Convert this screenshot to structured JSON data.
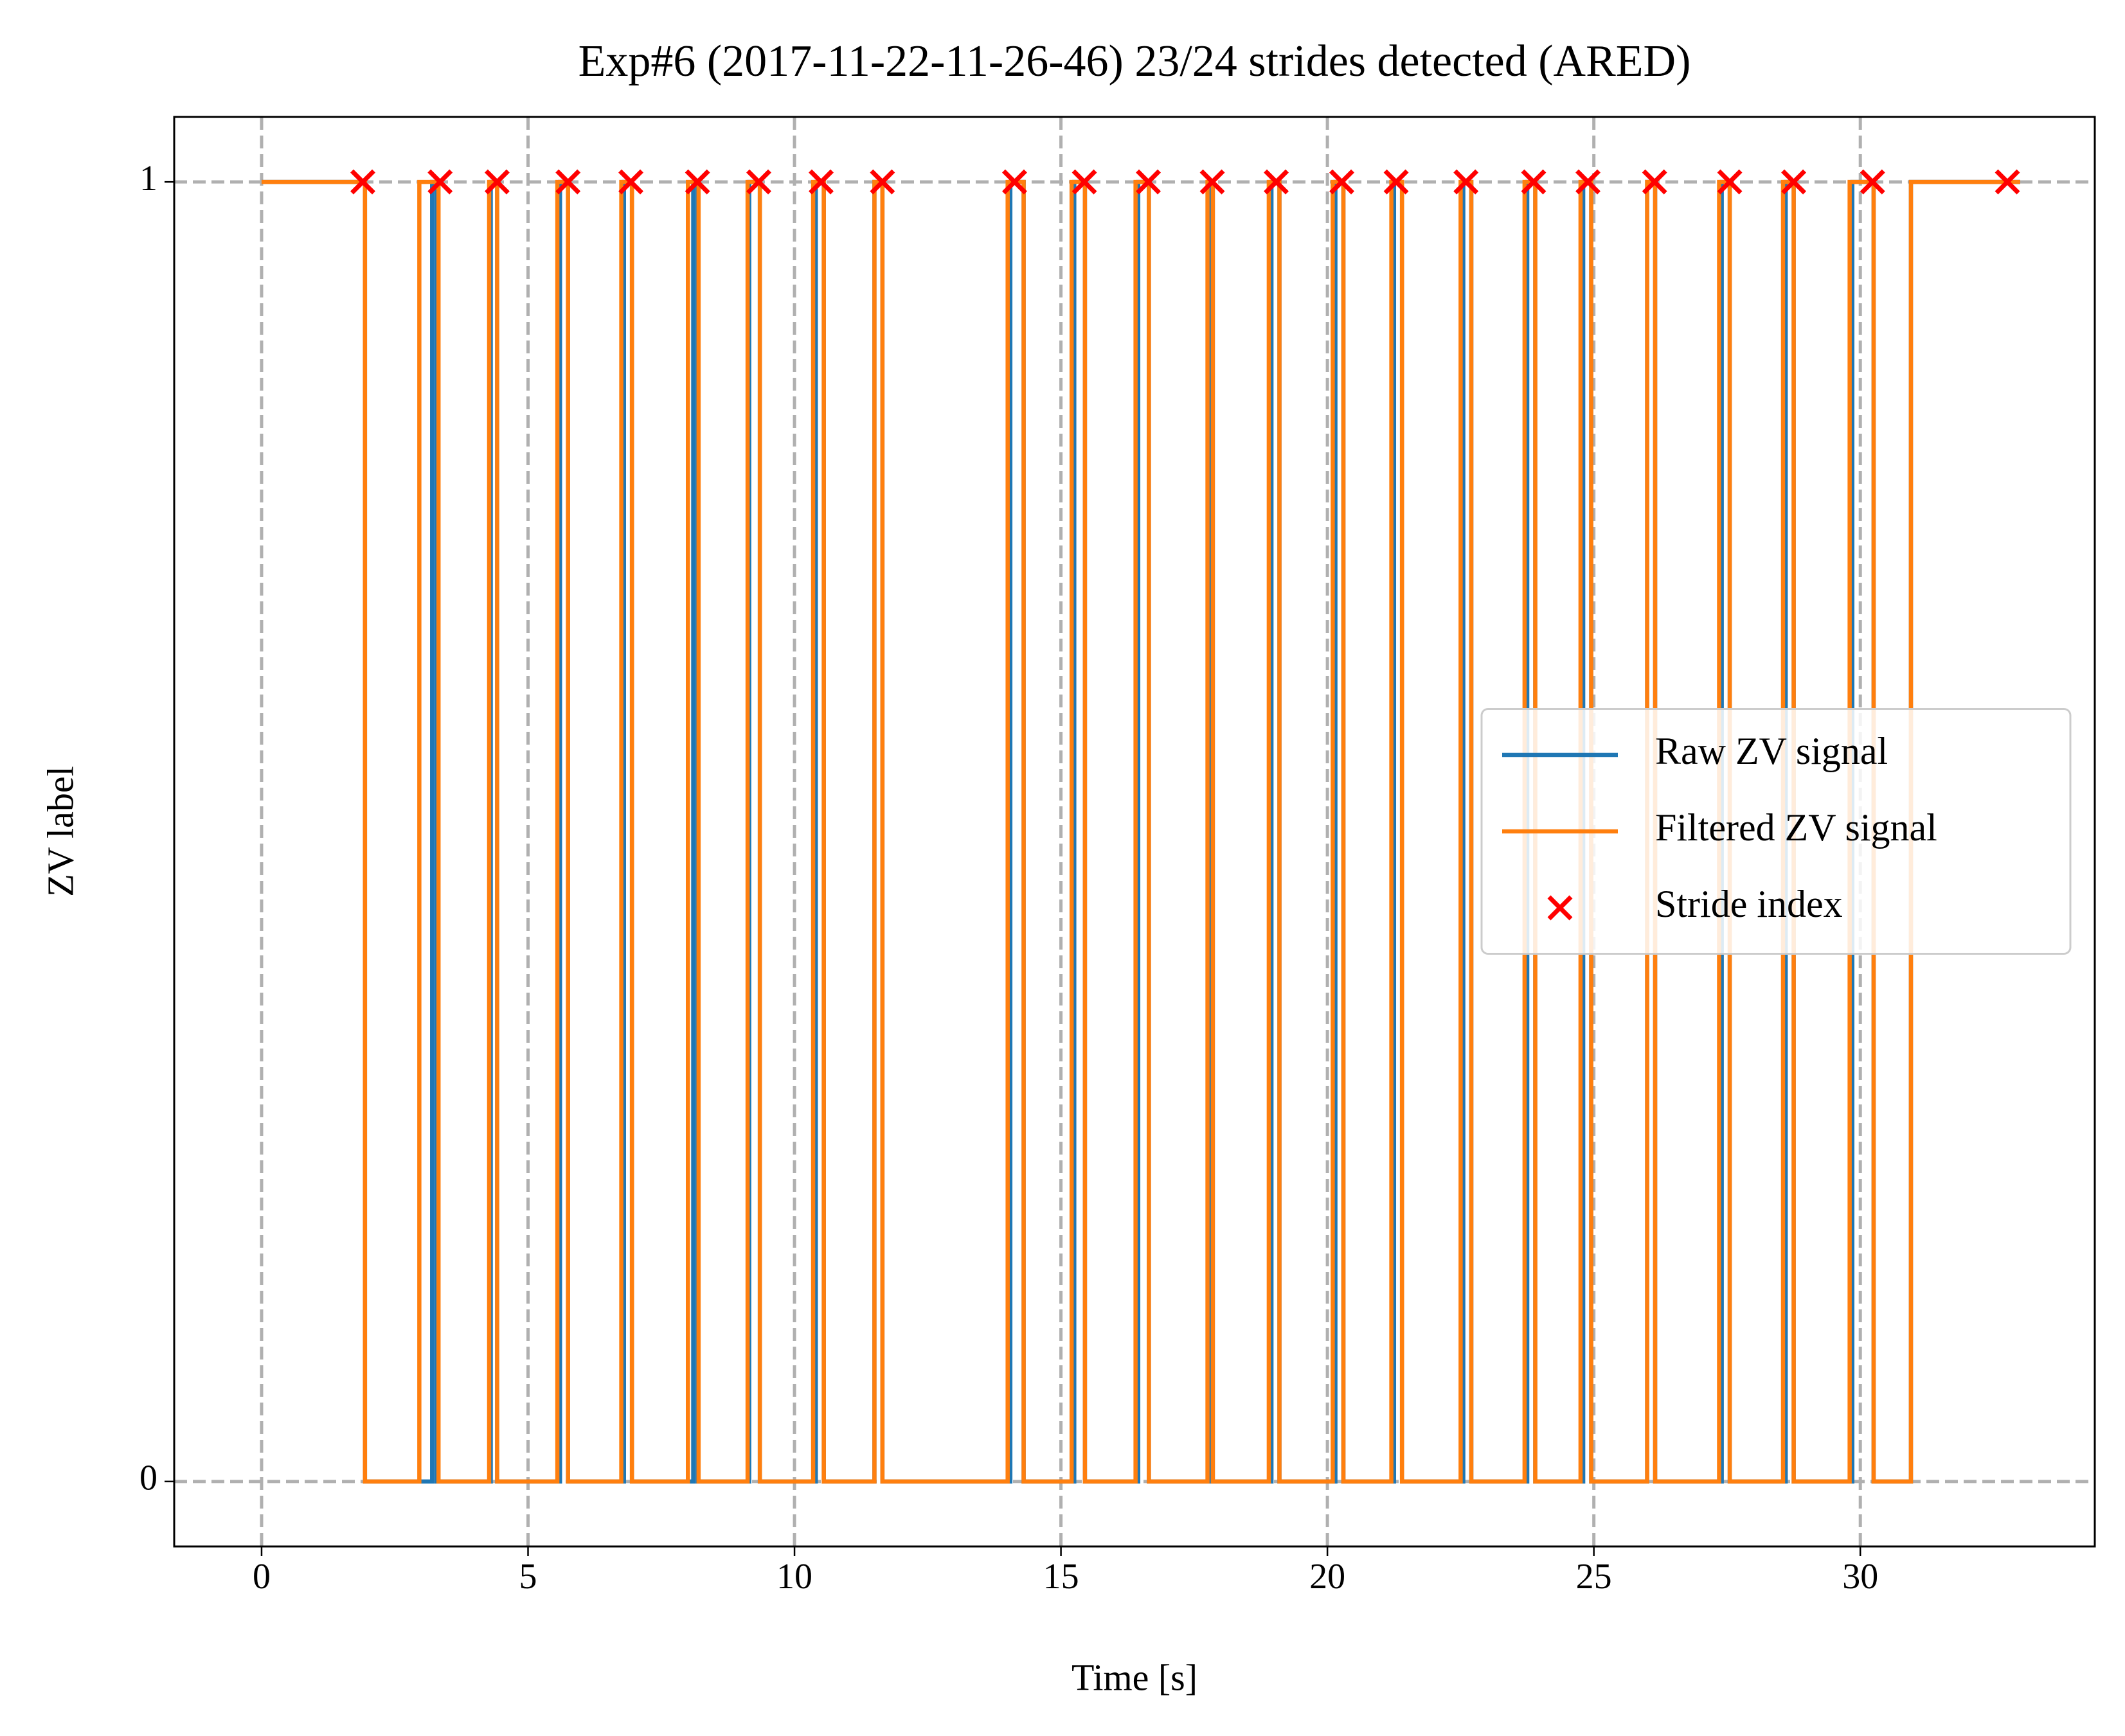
{
  "chart_data": {
    "type": "line",
    "title": "Exp#6 (2017-11-22-11-26-46) 23/24 strides detected (ARED)",
    "x_label": "Time [s]",
    "y_label": "ZV label",
    "xlim": [
      -1.64,
      34.4
    ],
    "ylim": [
      -0.05,
      1.05
    ],
    "xticks": [
      0,
      5,
      10,
      15,
      20,
      25,
      30
    ],
    "yticks": [
      0,
      1
    ],
    "grid": true,
    "legend": "center right",
    "series": [
      {
        "name": "Raw ZV signal",
        "type": "line",
        "color": "#1f77b4",
        "x": [
          0,
          1.94,
          1.94,
          3.2,
          3.2,
          3.28,
          3.28,
          4.3,
          4.3,
          4.42,
          4.42,
          5.6,
          5.6,
          5.75,
          5.75,
          6.8,
          6.8,
          6.95,
          6.95,
          8.1,
          8.1,
          8.18,
          8.18,
          9.15,
          9.15,
          9.35,
          9.35,
          10.4,
          10.4,
          10.55,
          10.55,
          11.5,
          11.5,
          11.65,
          11.65,
          14.05,
          14.05,
          14.3,
          14.3,
          15.25,
          15.25,
          15.45,
          15.45,
          16.45,
          16.45,
          16.65,
          16.65,
          17.78,
          17.78,
          17.85,
          17.85,
          18.95,
          18.95,
          19.1,
          19.1,
          20.15,
          20.15,
          20.3,
          20.3,
          21.25,
          21.25,
          21.4,
          21.4,
          22.55,
          22.55,
          22.7,
          22.7,
          23.75,
          23.75,
          23.9,
          23.9,
          24.8,
          24.8,
          24.95,
          24.95,
          26.0,
          26.0,
          26.15,
          26.15,
          27.4,
          27.4,
          27.55,
          27.55,
          28.6,
          28.6,
          28.75,
          28.75,
          29.85,
          29.85,
          30.25,
          30.25,
          30.95,
          30.95,
          33.0
        ],
        "values": [
          1,
          1,
          0,
          0,
          1,
          1,
          0,
          0,
          1,
          1,
          0,
          0,
          1,
          1,
          0,
          0,
          1,
          1,
          0,
          0,
          1,
          1,
          0,
          0,
          1,
          1,
          0,
          0,
          1,
          1,
          0,
          0,
          1,
          1,
          0,
          0,
          1,
          1,
          0,
          0,
          1,
          1,
          0,
          0,
          1,
          1,
          0,
          0,
          1,
          1,
          0,
          0,
          1,
          1,
          0,
          0,
          1,
          1,
          0,
          0,
          1,
          1,
          0,
          0,
          1,
          1,
          0,
          0,
          1,
          1,
          0,
          0,
          1,
          1,
          0,
          0,
          1,
          1,
          0,
          0,
          1,
          1,
          0,
          0,
          1,
          1,
          0,
          0,
          1,
          1,
          0,
          0,
          1,
          1
        ]
      },
      {
        "name": "Filtered ZV signal",
        "type": "line",
        "color": "#ff7f0e",
        "x": [
          0,
          1.94,
          1.94,
          2.96,
          2.96,
          3.32,
          3.32,
          4.27,
          4.27,
          4.42,
          4.42,
          5.55,
          5.55,
          5.75,
          5.75,
          6.75,
          6.75,
          6.95,
          6.95,
          8.0,
          8.0,
          8.2,
          8.2,
          9.12,
          9.12,
          9.35,
          9.35,
          10.35,
          10.35,
          10.55,
          10.55,
          11.5,
          11.5,
          11.65,
          11.65,
          14.0,
          14.0,
          14.3,
          14.3,
          15.2,
          15.2,
          15.45,
          15.45,
          16.4,
          16.4,
          16.65,
          16.65,
          17.75,
          17.75,
          17.85,
          17.85,
          18.9,
          18.9,
          19.1,
          19.1,
          20.1,
          20.1,
          20.3,
          20.3,
          21.2,
          21.2,
          21.4,
          21.4,
          22.5,
          22.5,
          22.7,
          22.7,
          23.7,
          23.7,
          23.9,
          23.9,
          24.75,
          24.75,
          24.95,
          24.95,
          26.0,
          26.0,
          26.15,
          26.15,
          27.35,
          27.35,
          27.55,
          27.55,
          28.55,
          28.55,
          28.75,
          28.75,
          29.8,
          29.8,
          30.25,
          30.25,
          30.95,
          30.95,
          33.0
        ],
        "values": [
          1,
          1,
          0,
          0,
          1,
          1,
          0,
          0,
          1,
          1,
          0,
          0,
          1,
          1,
          0,
          0,
          1,
          1,
          0,
          0,
          1,
          1,
          0,
          0,
          1,
          1,
          0,
          0,
          1,
          1,
          0,
          0,
          1,
          1,
          0,
          0,
          1,
          1,
          0,
          0,
          1,
          1,
          0,
          0,
          1,
          1,
          0,
          0,
          1,
          1,
          0,
          0,
          1,
          1,
          0,
          0,
          1,
          1,
          0,
          0,
          1,
          1,
          0,
          0,
          1,
          1,
          0,
          0,
          1,
          1,
          0,
          0,
          1,
          1,
          0,
          0,
          1,
          1,
          0,
          0,
          1,
          1,
          0,
          0,
          1,
          1,
          0,
          0,
          1,
          1,
          0,
          0,
          1,
          1
        ]
      },
      {
        "name": "Stride index",
        "type": "scatter",
        "marker": "x",
        "color": "#ff0000",
        "x": [
          1.9,
          3.35,
          4.42,
          5.75,
          6.93,
          8.18,
          9.33,
          10.5,
          11.65,
          14.13,
          15.44,
          16.64,
          17.84,
          19.04,
          20.27,
          21.29,
          22.6,
          23.87,
          24.89,
          26.14,
          27.55,
          28.75,
          30.23,
          32.76
        ],
        "values": [
          1,
          1,
          1,
          1,
          1,
          1,
          1,
          1,
          1,
          1,
          1,
          1,
          1,
          1,
          1,
          1,
          1,
          1,
          1,
          1,
          1,
          1,
          1,
          1
        ]
      }
    ]
  }
}
